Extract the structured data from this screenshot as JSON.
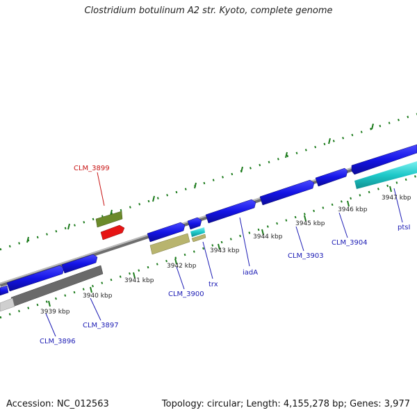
{
  "title": "Clostridium botulinum A2 str. Kyoto, complete genome",
  "footer": {
    "accession": "Accession: NC_012563",
    "topology": "Topology: circular; Length: 4,155,278 bp; Genes: 3,977"
  },
  "ticks": [
    "3939 kbp",
    "3940 kbp",
    "3941 kbp",
    "3942 kbp",
    "3943 kbp",
    "3944 kbp",
    "3945 kbp",
    "3946 kbp",
    "3947 kbp"
  ],
  "genes": [
    "CLM_3899",
    "CLM_3896",
    "CLM_3897",
    "CLM_3900",
    "trx",
    "iadA",
    "CLM_3903",
    "CLM_3904",
    "ptsI"
  ],
  "colors": {
    "forward_gene": "#1414e6",
    "backbone": "#9a9a9a",
    "tick": "#1a7a1a",
    "label_blue": "#1a1ab4",
    "label_red": "#c81414",
    "olive": "#6b8a2a",
    "red": "#e61414",
    "khaki": "#b8b46e",
    "cyan": "#1ec8c8",
    "dark_gray": "#6a6a6a",
    "light_gray": "#cfcfcf"
  }
}
